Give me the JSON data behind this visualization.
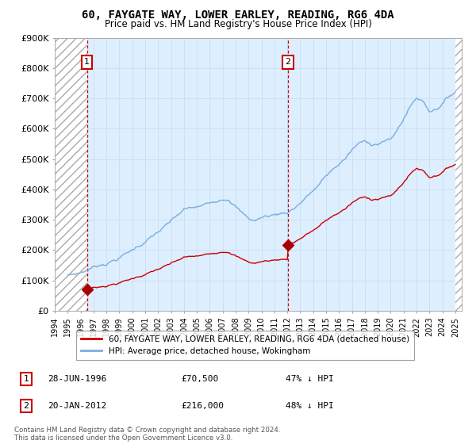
{
  "title": "60, FAYGATE WAY, LOWER EARLEY, READING, RG6 4DA",
  "subtitle": "Price paid vs. HM Land Registry's House Price Index (HPI)",
  "xlim_start": 1994.0,
  "xlim_end": 2025.5,
  "ylim_min": 0,
  "ylim_max": 900000,
  "yticks": [
    0,
    100000,
    200000,
    300000,
    400000,
    500000,
    600000,
    700000,
    800000,
    900000
  ],
  "ytick_labels": [
    "£0",
    "£100K",
    "£200K",
    "£300K",
    "£400K",
    "£500K",
    "£600K",
    "£700K",
    "£800K",
    "£900K"
  ],
  "xticks": [
    1994,
    1995,
    1996,
    1997,
    1998,
    1999,
    2000,
    2001,
    2002,
    2003,
    2004,
    2005,
    2006,
    2007,
    2008,
    2009,
    2010,
    2011,
    2012,
    2013,
    2014,
    2015,
    2016,
    2017,
    2018,
    2019,
    2020,
    2021,
    2022,
    2023,
    2024,
    2025
  ],
  "hpi_color": "#7aaddd",
  "hpi_fill_color": "#ddeeff",
  "price_color": "#cc0000",
  "marker_color": "#aa0000",
  "vline_color": "#cc0000",
  "purchase1_x": 1996.49,
  "purchase1_y": 70500,
  "purchase1_label": "1",
  "purchase2_x": 2012.055,
  "purchase2_y": 216000,
  "purchase2_label": "2",
  "legend_line1": "60, FAYGATE WAY, LOWER EARLEY, READING, RG6 4DA (detached house)",
  "legend_line2": "HPI: Average price, detached house, Wokingham",
  "footnote": "Contains HM Land Registry data © Crown copyright and database right 2024.\nThis data is licensed under the Open Government Licence v3.0.",
  "background_color": "#ffffff",
  "grid_color": "#ccddee",
  "hpi_key_years": [
    1995,
    1996,
    1997,
    1998,
    1999,
    2000,
    2001,
    2002,
    2003,
    2004,
    2005,
    2006,
    2007,
    2007.5,
    2008,
    2008.5,
    2009,
    2009.5,
    2010,
    2010.5,
    2011,
    2011.5,
    2012,
    2012.5,
    2013,
    2013.5,
    2014,
    2014.5,
    2015,
    2015.5,
    2016,
    2016.5,
    2017,
    2017.5,
    2018,
    2018.5,
    2019,
    2019.5,
    2020,
    2020.5,
    2021,
    2021.5,
    2022,
    2022.5,
    2023,
    2023.5,
    2024,
    2024.5,
    2025
  ],
  "hpi_key_values": [
    118000,
    128000,
    148000,
    165000,
    185000,
    210000,
    240000,
    270000,
    300000,
    335000,
    340000,
    350000,
    375000,
    380000,
    360000,
    335000,
    315000,
    310000,
    320000,
    325000,
    330000,
    335000,
    340000,
    355000,
    375000,
    395000,
    415000,
    435000,
    460000,
    480000,
    500000,
    520000,
    545000,
    565000,
    570000,
    565000,
    570000,
    580000,
    580000,
    610000,
    650000,
    690000,
    720000,
    710000,
    680000,
    690000,
    710000,
    730000,
    750000
  ]
}
